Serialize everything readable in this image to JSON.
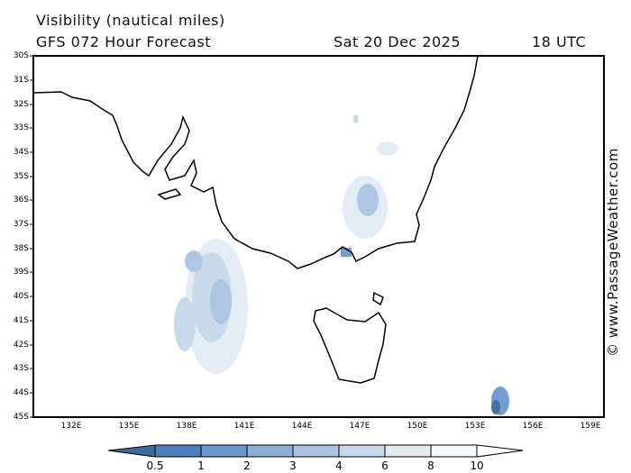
{
  "header": {
    "title": "Visibility (nautical miles)",
    "forecast": "GFS 072 Hour Forecast",
    "date": "Sat 20 Dec 2025",
    "time": "18 UTC"
  },
  "map": {
    "lat_labels": [
      "30S",
      "31S",
      "32S",
      "33S",
      "34S",
      "35S",
      "36S",
      "37S",
      "38S",
      "39S",
      "40S",
      "41S",
      "42S",
      "43S",
      "44S",
      "45S"
    ],
    "lon_labels": [
      "132E",
      "135E",
      "138E",
      "141E",
      "144E",
      "147E",
      "150E",
      "153E",
      "156E",
      "159E"
    ]
  },
  "legend": {
    "labels": [
      "0.5",
      "1",
      "2",
      "3",
      "4",
      "6",
      "8",
      "10"
    ],
    "colors": [
      "#3b6b9e",
      "#4a7fbd",
      "#6a98d0",
      "#8cafd7",
      "#abc4e1",
      "#c7d8eb",
      "#e3ebf5",
      "#f3f6fb",
      "#ffffff"
    ]
  },
  "watermark": "© www.PassageWeather.com"
}
